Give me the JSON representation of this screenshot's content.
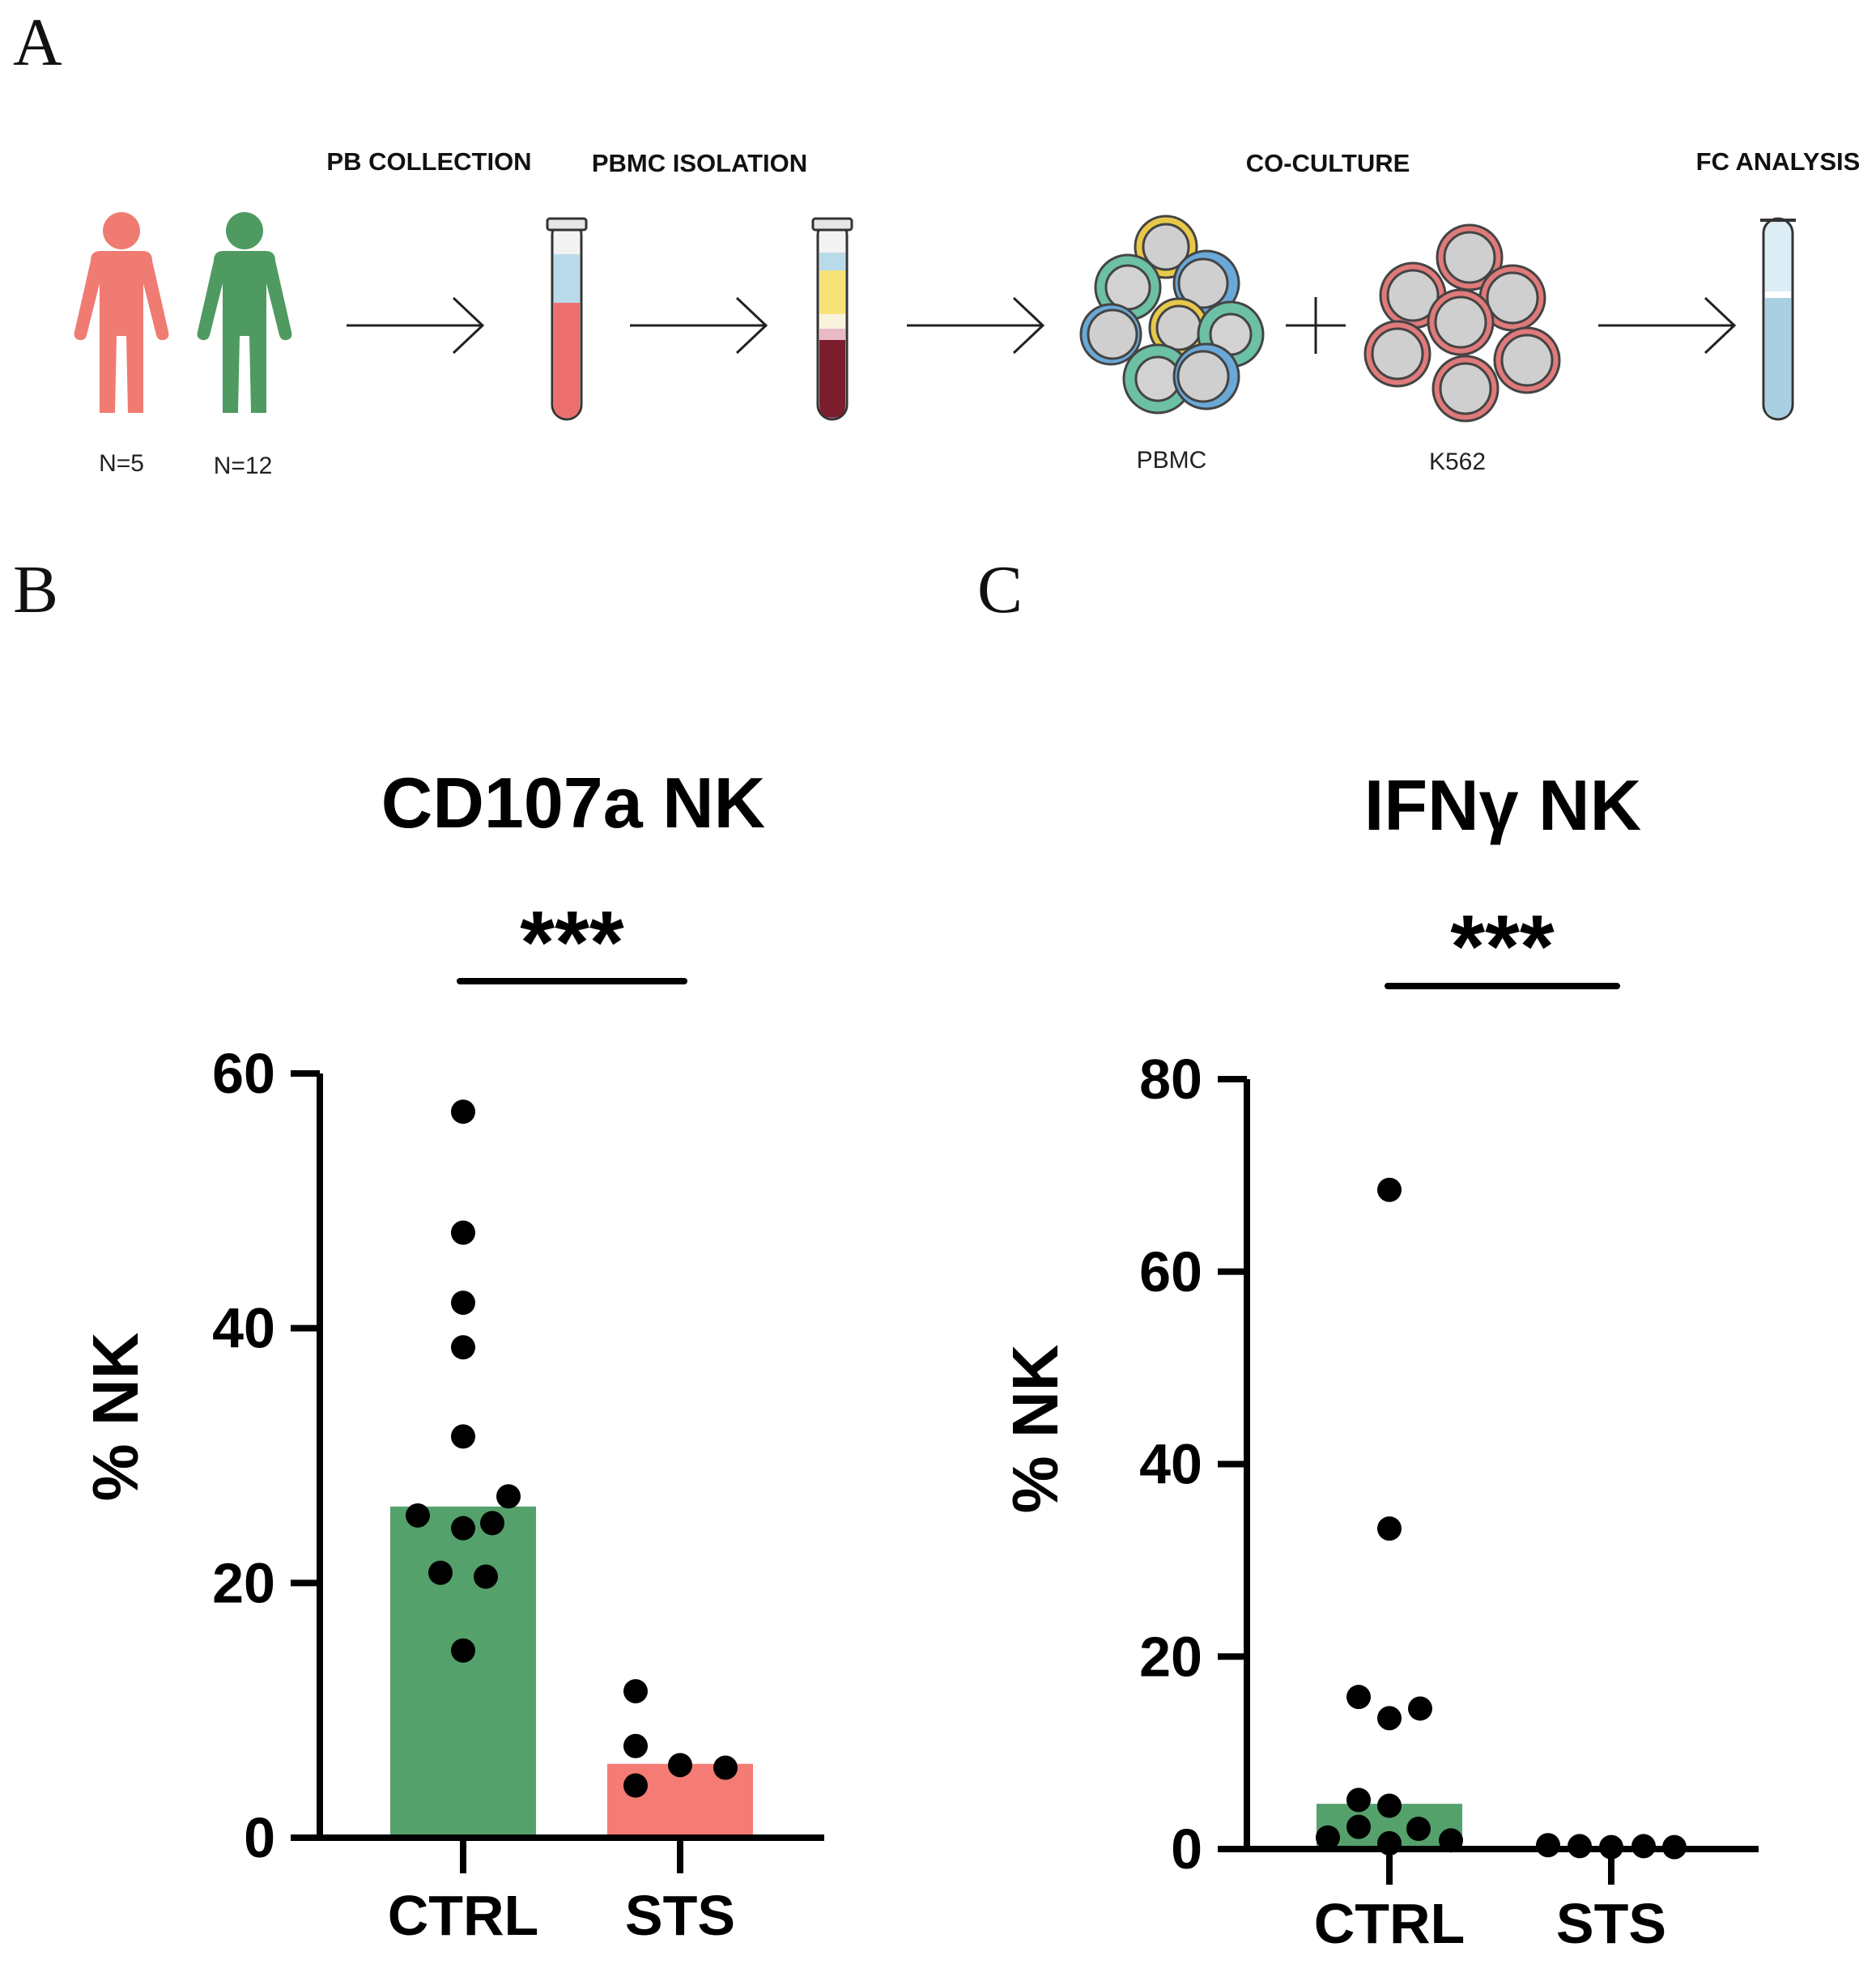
{
  "panels": {
    "a": "A",
    "b": "B",
    "c": "C"
  },
  "workflow": {
    "steps": {
      "pb_collection": "PB COLLECTION",
      "pbmc_isolation": "PBMC ISOLATION",
      "co_culture": "CO-CULTURE",
      "fc_analysis": "FC ANALYSIS"
    },
    "groups": {
      "sts_n": "N=5",
      "ctrl_n": "N=12"
    },
    "cells": {
      "pbmc": "PBMC",
      "k562": "K562"
    },
    "colors": {
      "sts": "#f07b72",
      "ctrl": "#4f9a60"
    }
  },
  "chart_data": [
    {
      "type": "bar",
      "title": "CD107a NK",
      "ylabel": "% NK",
      "xlabel": "",
      "categories": [
        "CTRL",
        "STS"
      ],
      "values": [
        26,
        5.8
      ],
      "colors": [
        "#55a16c",
        "#f47c74"
      ],
      "ylim": [
        0,
        60
      ],
      "yticks": [
        0,
        20,
        40,
        60
      ],
      "points": [
        [
          57,
          47.5,
          42,
          38.5,
          31.5,
          26.8,
          25.3,
          24.7,
          24.3,
          20.8,
          20.5,
          14.7
        ],
        [
          11.5,
          7.2,
          5.7,
          5.5,
          4.1
        ]
      ],
      "significance": "***"
    },
    {
      "type": "bar",
      "title": "IFNγ NK",
      "ylabel": "% NK",
      "xlabel": "",
      "categories": [
        "CTRL",
        "STS"
      ],
      "values": [
        4.7,
        0.3
      ],
      "colors": [
        "#55a16c",
        "#f47c74"
      ],
      "ylim": [
        0,
        80
      ],
      "yticks": [
        0,
        20,
        40,
        60,
        80
      ],
      "points": [
        [
          68.5,
          33.3,
          15.8,
          14.6,
          13.6,
          5.1,
          4.5,
          2.3,
          2.1,
          1.2,
          0.9,
          0.6
        ],
        [
          0.4,
          0.3,
          0.2,
          0.3,
          0.2
        ]
      ],
      "significance": "***"
    }
  ]
}
